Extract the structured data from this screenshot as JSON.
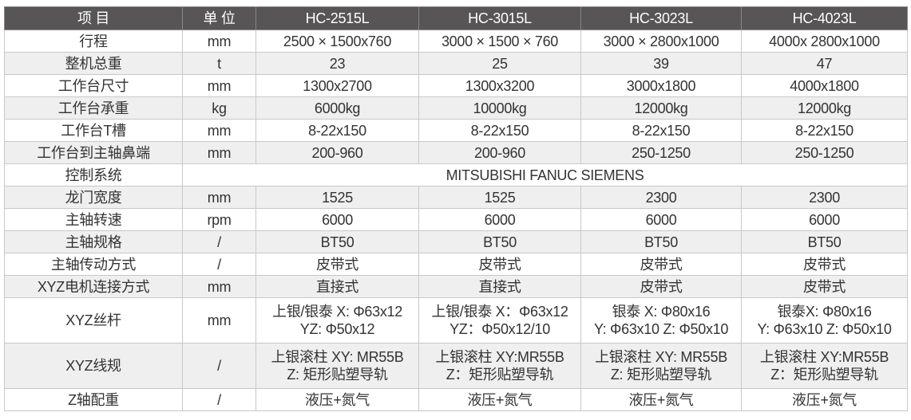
{
  "header": [
    "项 目",
    "单 位",
    "HC-2515L",
    "HC-3015L",
    "HC-3023L",
    "HC-4023L"
  ],
  "rows": [
    {
      "item": "行程",
      "unit": "mm",
      "values": [
        "2500 × 1500x760",
        "3000 × 1500 × 760",
        "3000 × 2800x1000",
        "4000x 2800x1000"
      ]
    },
    {
      "item": "整机总重",
      "unit": "t",
      "values": [
        "23",
        "25",
        "39",
        "47"
      ]
    },
    {
      "item": "工作台尺寸",
      "unit": "mm",
      "values": [
        "1300x2700",
        "1300x3200",
        "3000x1800",
        "4000x1800"
      ]
    },
    {
      "item": "工作台承重",
      "unit": "kg",
      "values": [
        "6000kg",
        "10000kg",
        "12000kg",
        "12000kg"
      ]
    },
    {
      "item": "工作台T槽",
      "unit": "mm",
      "values": [
        "8-22x150",
        "8-22x150",
        "8-22x150",
        "8-22x150"
      ]
    },
    {
      "item": "工作台到主轴鼻端",
      "unit": "mm",
      "values": [
        "200-960",
        "200-960",
        "250-1250",
        "250-1250"
      ]
    },
    {
      "item": "控制系统",
      "span": "MITSUBISHI   FANUC   SIEMENS"
    },
    {
      "item": "龙门宽度",
      "unit": "mm",
      "values": [
        "1525",
        "1525",
        "2300",
        "2300"
      ]
    },
    {
      "item": "主轴转速",
      "unit": "rpm",
      "values": [
        "6000",
        "6000",
        "6000",
        "6000"
      ]
    },
    {
      "item": "主轴规格",
      "unit": "/",
      "values": [
        "BT50",
        "BT50",
        "BT50",
        "BT50"
      ]
    },
    {
      "item": "主轴传动方式",
      "unit": "/",
      "values": [
        "皮带式",
        "皮带式",
        "皮带式",
        "皮带式"
      ]
    },
    {
      "item": "XYZ电机连接方式",
      "unit": "mm",
      "values": [
        "直接式",
        "直接式",
        "皮带式",
        "皮带式"
      ]
    },
    {
      "item": "XYZ丝杆",
      "unit": "mm",
      "values": [
        [
          "上银/银泰 X: Φ63x12",
          "YZ: Φ50x12"
        ],
        [
          "上银/银泰 X：Φ63x12",
          "YZ：Φ50x12/10"
        ],
        [
          "银泰 X: Φ80x16",
          "Y: Φ63x10 Z: Φ50x10"
        ],
        [
          "银泰X: Φ80x16",
          "Y: Φ63x10 Z: Φ50x10"
        ]
      ]
    },
    {
      "item": "XYZ线规",
      "unit": "/",
      "values": [
        [
          "上银滚柱 XY: MR55B",
          "Z: 矩形贴塑导轨"
        ],
        [
          "上银滚柱 XY:MR55B",
          "Z：矩形贴塑导轨"
        ],
        [
          "上银滚柱 XY: MR55B",
          "Z: 矩形贴塑导轨"
        ],
        [
          "上银滚柱 XY:MR55B",
          "Z：矩形贴塑导轨"
        ]
      ]
    },
    {
      "item": "Z轴配重",
      "unit": "/",
      "values": [
        "液压+氮气",
        "液压+氮气",
        "液压+氮气",
        "液压+氮气"
      ]
    }
  ]
}
